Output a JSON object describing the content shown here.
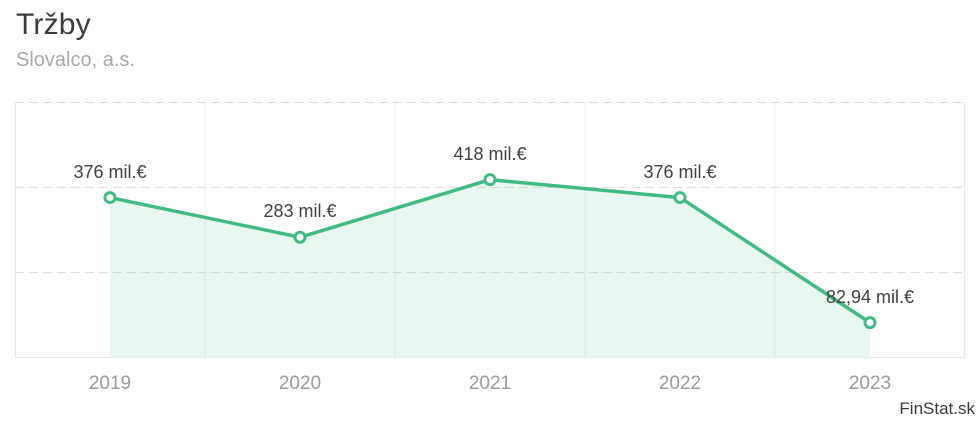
{
  "header": {
    "title": "Tržby",
    "subtitle": "Slovalco, a.s."
  },
  "footer": {
    "attribution": "FinStat.sk"
  },
  "chart_data": {
    "type": "area",
    "title": "Tržby",
    "subtitle": "Slovalco, a.s.",
    "categories": [
      "2019",
      "2020",
      "2021",
      "2022",
      "2023"
    ],
    "values": [
      376,
      283,
      418,
      376,
      82.94
    ],
    "labels": [
      "376 mil.€",
      "283 mil.€",
      "418 mil.€",
      "376 mil.€",
      "82,94 mil.€"
    ],
    "unit": "mil.€",
    "xlabel": "",
    "ylabel": "",
    "ylim": [
      0,
      600
    ],
    "gridline_step": 200,
    "grid": "horizontal-dashed",
    "legend": "none",
    "colors": {
      "line": "#40bb84",
      "marker_fill": "#ffffff",
      "area_fill": "#40bb841f",
      "gridline": "#dcdcdc",
      "separator": "#edf0ef",
      "border": "#e7eaec",
      "label_text": "#414141",
      "axis_text": "#9b9b9b",
      "title_text": "#3b3b3b",
      "subtitle_text": "#a9a9a9"
    }
  }
}
